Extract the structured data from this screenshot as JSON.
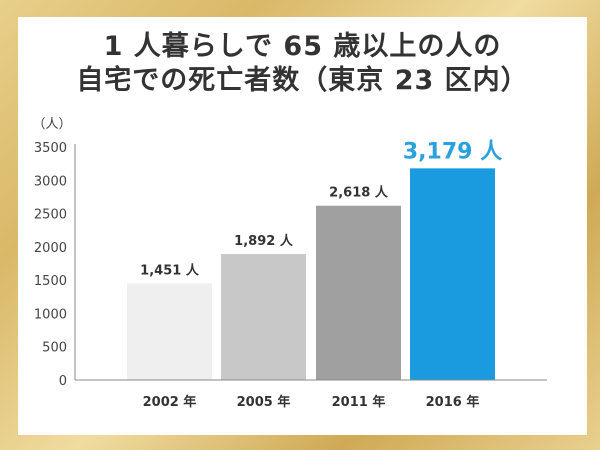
{
  "chart_data": {
    "type": "bar",
    "title": [
      "1 人暮らしで 65 歳以上の人の",
      "自宅での死亡者数（東京 23 区内）"
    ],
    "ylabel": "（人）",
    "xlabel": "",
    "categories": [
      "2002 年",
      "2005 年",
      "2011 年",
      "2016 年"
    ],
    "values": [
      1451,
      1892,
      2618,
      3179
    ],
    "data_labels": [
      "1,451 人",
      "1,892 人",
      "2,618 人",
      "3,179 人"
    ],
    "colors": [
      "#efefef",
      "#c8c8c8",
      "#a0a0a0",
      "#1a9be0"
    ],
    "label_colors": [
      "#333333",
      "#333333",
      "#333333",
      "#2aa0dc"
    ],
    "ylim": [
      0,
      3500
    ],
    "yticks": [
      0,
      500,
      1000,
      1500,
      2000,
      2500,
      3000,
      3500
    ],
    "grid": false,
    "legend": "none"
  }
}
